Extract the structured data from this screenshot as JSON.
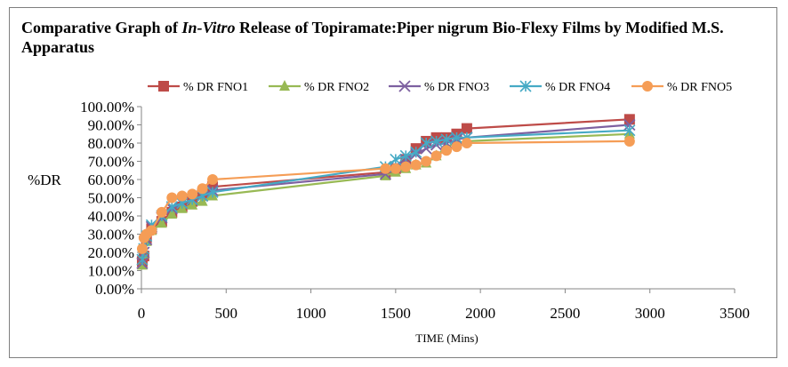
{
  "chart_data": {
    "type": "line",
    "title_parts": [
      "Comparative Graph of ",
      "In-Vitro",
      " Release of Topiramate:Piper nigrum Bio-Flexy Films by Modified M.S. Apparatus"
    ],
    "title": "Comparative Graph of In-Vitro Release of Topiramate:Piper nigrum Bio-Flexy Films by Modified M.S. Apparatus",
    "xlabel": "TIME (Mins)",
    "ylabel": "%DR",
    "xlim": [
      0,
      3500
    ],
    "ylim": [
      0,
      1
    ],
    "x_ticks": [
      0,
      500,
      1000,
      1500,
      2000,
      2500,
      3000,
      3500
    ],
    "y_ticks": [
      0,
      0.1,
      0.2,
      0.3,
      0.4,
      0.5,
      0.6,
      0.7,
      0.8,
      0.9,
      1.0
    ],
    "y_tick_labels": [
      "0.00%",
      "10.00%",
      "20.00%",
      "30.00%",
      "40.00%",
      "50.00%",
      "60.00%",
      "70.00%",
      "80.00%",
      "90.00%",
      "100.00%"
    ],
    "grid": false,
    "legend_position": "top",
    "series": [
      {
        "name": "% DR FNO1",
        "color": "#be4b48",
        "marker": "square",
        "x": [
          5,
          15,
          30,
          60,
          120,
          180,
          240,
          300,
          360,
          420,
          1440,
          1500,
          1560,
          1620,
          1680,
          1740,
          1800,
          1860,
          1920,
          2880
        ],
        "y": [
          0.15,
          0.18,
          0.28,
          0.33,
          0.37,
          0.42,
          0.45,
          0.48,
          0.52,
          0.56,
          0.64,
          0.66,
          0.71,
          0.77,
          0.81,
          0.83,
          0.83,
          0.85,
          0.88,
          0.93
        ]
      },
      {
        "name": "% DR FNO2",
        "color": "#98b954",
        "marker": "triangle",
        "x": [
          5,
          15,
          30,
          60,
          120,
          180,
          240,
          300,
          360,
          420,
          1440,
          1500,
          1560,
          1620,
          1680,
          1740,
          1800,
          1860,
          1920,
          2880
        ],
        "y": [
          0.13,
          0.19,
          0.26,
          0.32,
          0.36,
          0.41,
          0.44,
          0.46,
          0.48,
          0.51,
          0.62,
          0.64,
          0.66,
          0.68,
          0.69,
          0.73,
          0.78,
          0.8,
          0.81,
          0.85
        ]
      },
      {
        "name": "% DR FNO3",
        "color": "#7d60a0",
        "marker": "x",
        "x": [
          5,
          15,
          30,
          60,
          120,
          180,
          240,
          300,
          360,
          420,
          1440,
          1500,
          1560,
          1620,
          1680,
          1740,
          1800,
          1860,
          1920,
          2880
        ],
        "y": [
          0.14,
          0.2,
          0.27,
          0.34,
          0.39,
          0.44,
          0.47,
          0.49,
          0.51,
          0.54,
          0.63,
          0.67,
          0.71,
          0.74,
          0.77,
          0.79,
          0.8,
          0.82,
          0.83,
          0.9
        ]
      },
      {
        "name": "% DR FNO4",
        "color": "#46aac5",
        "marker": "star",
        "x": [
          5,
          15,
          30,
          60,
          120,
          180,
          240,
          300,
          360,
          420,
          1440,
          1500,
          1560,
          1620,
          1680,
          1740,
          1800,
          1860,
          1920,
          2880
        ],
        "y": [
          0.16,
          0.22,
          0.29,
          0.35,
          0.4,
          0.45,
          0.47,
          0.49,
          0.51,
          0.53,
          0.67,
          0.71,
          0.73,
          0.75,
          0.8,
          0.81,
          0.82,
          0.83,
          0.83,
          0.87
        ]
      },
      {
        "name": "% DR FNO5",
        "color": "#f59d56",
        "marker": "circle",
        "x": [
          5,
          15,
          30,
          60,
          120,
          180,
          240,
          300,
          360,
          420,
          1440,
          1500,
          1560,
          1620,
          1680,
          1740,
          1800,
          1860,
          1920,
          2880
        ],
        "y": [
          0.22,
          0.28,
          0.3,
          0.32,
          0.42,
          0.5,
          0.51,
          0.52,
          0.55,
          0.6,
          0.66,
          0.66,
          0.67,
          0.68,
          0.7,
          0.73,
          0.76,
          0.78,
          0.8,
          0.81
        ]
      }
    ]
  }
}
